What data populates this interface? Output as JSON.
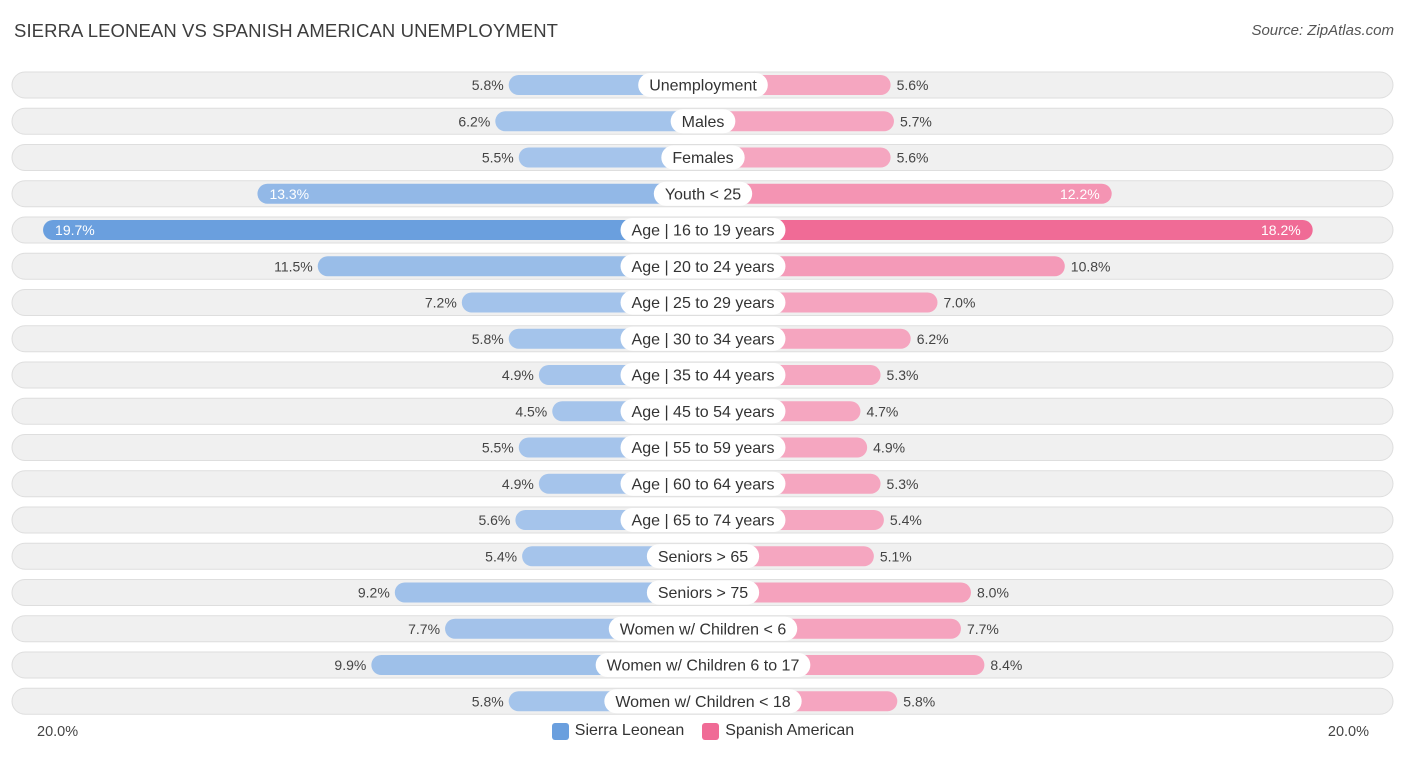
{
  "header": {
    "title": "SIERRA LEONEAN VS SPANISH AMERICAN UNEMPLOYMENT",
    "source": "Source: ZipAtlas.com"
  },
  "axis": {
    "left_label": "20.0%",
    "right_label": "20.0%"
  },
  "legend": {
    "left": "Sierra Leonean",
    "right": "Spanish American"
  },
  "colors": {
    "left_bar": "#a5c4eb",
    "left_bar_strong": "#6a9fde",
    "right_bar": "#f5a6c0",
    "right_bar_strong": "#f06b96",
    "row_bg": "#f0f0f0",
    "row_border": "#dedede"
  },
  "chart_data": {
    "type": "bar",
    "orientation": "horizontal-diverging",
    "title": "SIERRA LEONEAN VS SPANISH AMERICAN UNEMPLOYMENT",
    "xlim": [
      -20.0,
      20.0
    ],
    "unit": "%",
    "categories": [
      "Unemployment",
      "Males",
      "Females",
      "Youth < 25",
      "Age | 16 to 19 years",
      "Age | 20 to 24 years",
      "Age | 25 to 29 years",
      "Age | 30 to 34 years",
      "Age | 35 to 44 years",
      "Age | 45 to 54 years",
      "Age | 55 to 59 years",
      "Age | 60 to 64 years",
      "Age | 65 to 74 years",
      "Seniors > 65",
      "Seniors > 75",
      "Women w/ Children < 6",
      "Women w/ Children 6 to 17",
      "Women w/ Children < 18"
    ],
    "series": [
      {
        "name": "Sierra Leonean",
        "side": "left",
        "values": [
          5.8,
          6.2,
          5.5,
          13.3,
          19.7,
          11.5,
          7.2,
          5.8,
          4.9,
          4.5,
          5.5,
          4.9,
          5.6,
          5.4,
          9.2,
          7.7,
          9.9,
          5.8
        ],
        "labels": [
          "5.8%",
          "6.2%",
          "5.5%",
          "13.3%",
          "19.7%",
          "11.5%",
          "7.2%",
          "5.8%",
          "4.9%",
          "4.5%",
          "5.5%",
          "4.9%",
          "5.6%",
          "5.4%",
          "9.2%",
          "7.7%",
          "9.9%",
          "5.8%"
        ]
      },
      {
        "name": "Spanish American",
        "side": "right",
        "values": [
          5.6,
          5.7,
          5.6,
          12.2,
          18.2,
          10.8,
          7.0,
          6.2,
          5.3,
          4.7,
          4.9,
          5.3,
          5.4,
          5.1,
          8.0,
          7.7,
          8.4,
          5.8
        ],
        "labels": [
          "5.6%",
          "5.7%",
          "5.6%",
          "12.2%",
          "18.2%",
          "10.8%",
          "7.0%",
          "6.2%",
          "5.3%",
          "4.7%",
          "4.9%",
          "5.3%",
          "5.4%",
          "5.1%",
          "8.0%",
          "7.7%",
          "8.4%",
          "5.8%"
        ]
      }
    ],
    "legend_position": "bottom-center"
  }
}
